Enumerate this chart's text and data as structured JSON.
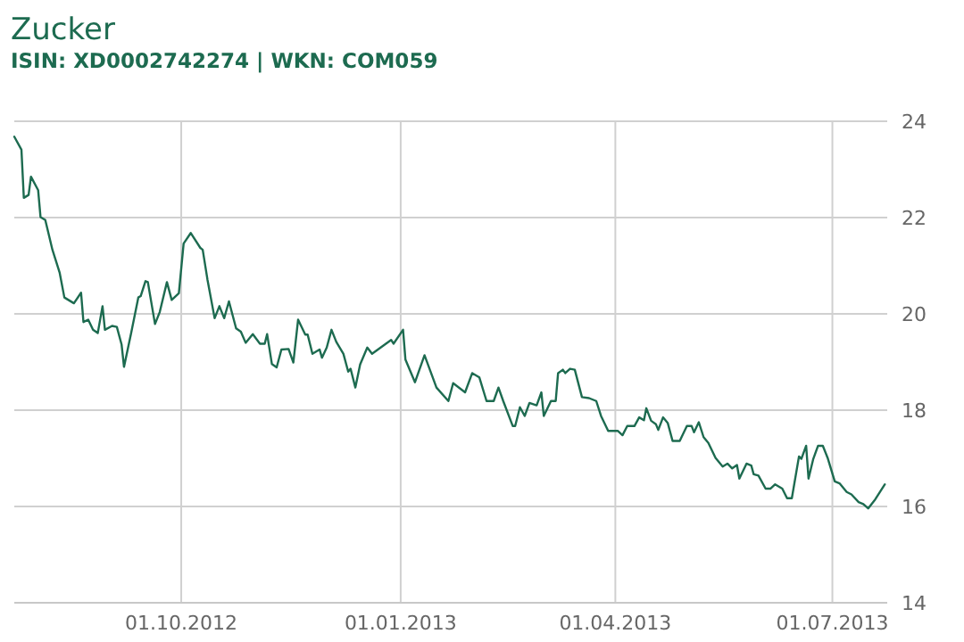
{
  "chart_data": {
    "type": "line",
    "title": "Zucker",
    "subtitle": "ISIN: XD0002742274 | WKN: COM059",
    "x": [
      "2012-07-23",
      "2012-07-26",
      "2012-07-27",
      "2012-07-29",
      "2012-07-30",
      "2012-08-02",
      "2012-08-03",
      "2012-08-05",
      "2012-08-08",
      "2012-08-11",
      "2012-08-13",
      "2012-08-17",
      "2012-08-20",
      "2012-08-21",
      "2012-08-23",
      "2012-08-25",
      "2012-08-27",
      "2012-08-29",
      "2012-08-30",
      "2012-09-02",
      "2012-09-04",
      "2012-09-06",
      "2012-09-07",
      "2012-09-10",
      "2012-09-13",
      "2012-09-14",
      "2012-09-16",
      "2012-09-17",
      "2012-09-20",
      "2012-09-22",
      "2012-09-25",
      "2012-09-27",
      "2012-09-30",
      "2012-10-02",
      "2012-10-05",
      "2012-10-09",
      "2012-10-10",
      "2012-10-12",
      "2012-10-15",
      "2012-10-17",
      "2012-10-19",
      "2012-10-21",
      "2012-10-24",
      "2012-10-26",
      "2012-10-28",
      "2012-10-31",
      "2012-11-03",
      "2012-11-05",
      "2012-11-06",
      "2012-11-08",
      "2012-11-10",
      "2012-11-12",
      "2012-11-15",
      "2012-11-17",
      "2012-11-19",
      "2012-11-22",
      "2012-11-23",
      "2012-11-25",
      "2012-11-28",
      "2012-11-29",
      "2012-12-01",
      "2012-12-03",
      "2012-12-05",
      "2012-12-08",
      "2012-12-10",
      "2012-12-11",
      "2012-12-13",
      "2012-12-15",
      "2012-12-18",
      "2012-12-20",
      "2012-12-28",
      "2012-12-29",
      "2013-01-02",
      "2013-01-03",
      "2013-01-07",
      "2013-01-11",
      "2013-01-16",
      "2013-01-21",
      "2013-01-23",
      "2013-01-28",
      "2013-01-31",
      "2013-02-03",
      "2013-02-06",
      "2013-02-09",
      "2013-02-11",
      "2013-02-13",
      "2013-02-17",
      "2013-02-18",
      "2013-02-20",
      "2013-02-22",
      "2013-02-24",
      "2013-02-27",
      "2013-03-01",
      "2013-03-02",
      "2013-03-05",
      "2013-03-07",
      "2013-03-08",
      "2013-03-10",
      "2013-03-11",
      "2013-03-13",
      "2013-03-15",
      "2013-03-18",
      "2013-03-21",
      "2013-03-24",
      "2013-03-26",
      "2013-03-29",
      "2013-04-02",
      "2013-04-04",
      "2013-04-06",
      "2013-04-09",
      "2013-04-11",
      "2013-04-13",
      "2013-04-14",
      "2013-04-16",
      "2013-04-18",
      "2013-04-19",
      "2013-04-21",
      "2013-04-23",
      "2013-04-25",
      "2013-04-28",
      "2013-05-01",
      "2013-05-03",
      "2013-05-04",
      "2013-05-06",
      "2013-05-08",
      "2013-05-10",
      "2013-05-13",
      "2013-05-15",
      "2013-05-16",
      "2013-05-18",
      "2013-05-20",
      "2013-05-22",
      "2013-05-23",
      "2013-05-26",
      "2013-05-28",
      "2013-05-29",
      "2013-05-31",
      "2013-06-03",
      "2013-06-05",
      "2013-06-07",
      "2013-06-10",
      "2013-06-12",
      "2013-06-14",
      "2013-06-17",
      "2013-06-18",
      "2013-06-20",
      "2013-06-21",
      "2013-06-23",
      "2013-06-25",
      "2013-06-27",
      "2013-06-29",
      "2013-07-02",
      "2013-07-04",
      "2013-07-07",
      "2013-07-09",
      "2013-07-12",
      "2013-07-14",
      "2013-07-16",
      "2013-07-19",
      "2013-07-23"
    ],
    "series": [
      {
        "color": "#1d6b50",
        "values": [
          23.68,
          23.41,
          22.41,
          22.47,
          22.85,
          22.57,
          22.01,
          21.95,
          21.33,
          20.86,
          20.34,
          20.22,
          20.44,
          19.83,
          19.88,
          19.67,
          19.6,
          20.16,
          19.67,
          19.75,
          19.73,
          19.36,
          18.9,
          19.6,
          20.34,
          20.37,
          20.68,
          20.66,
          19.79,
          20.04,
          20.66,
          20.29,
          20.43,
          21.46,
          21.68,
          21.37,
          21.33,
          20.71,
          19.91,
          20.16,
          19.91,
          20.26,
          19.7,
          19.63,
          19.4,
          19.58,
          19.38,
          19.38,
          19.58,
          18.96,
          18.89,
          19.26,
          19.27,
          18.99,
          19.88,
          19.57,
          19.57,
          19.17,
          19.26,
          19.09,
          19.3,
          19.67,
          19.42,
          19.17,
          18.8,
          18.86,
          18.47,
          18.95,
          19.3,
          19.17,
          19.46,
          19.38,
          19.67,
          19.05,
          18.58,
          19.14,
          18.47,
          18.19,
          18.56,
          18.37,
          18.77,
          18.68,
          18.19,
          18.19,
          18.47,
          18.19,
          17.67,
          17.67,
          18.06,
          17.88,
          18.15,
          18.1,
          18.37,
          17.88,
          18.19,
          18.19,
          18.77,
          18.84,
          18.77,
          18.86,
          18.84,
          18.27,
          18.25,
          18.19,
          17.88,
          17.57,
          17.57,
          17.48,
          17.67,
          17.67,
          17.85,
          17.79,
          18.04,
          17.78,
          17.71,
          17.59,
          17.85,
          17.73,
          17.36,
          17.36,
          17.67,
          17.67,
          17.54,
          17.75,
          17.44,
          17.32,
          17.01,
          16.89,
          16.83,
          16.89,
          16.79,
          16.86,
          16.58,
          16.89,
          16.85,
          16.67,
          16.64,
          16.37,
          16.37,
          16.46,
          16.37,
          16.17,
          16.17,
          17.04,
          16.99,
          17.26,
          16.58,
          16.99,
          17.26,
          17.26,
          17.01,
          16.52,
          16.48,
          16.3,
          16.25,
          16.09,
          16.05,
          15.96,
          16.15,
          16.46
        ]
      }
    ],
    "xlim": [
      "2012-07-23",
      "2013-07-24"
    ],
    "xticks": [
      {
        "value": "2012-10-01",
        "label": "01.10.2012"
      },
      {
        "value": "2013-01-01",
        "label": "01.01.2013"
      },
      {
        "value": "2013-04-01",
        "label": "01.04.2013"
      },
      {
        "value": "2013-07-01",
        "label": "01.07.2013"
      }
    ],
    "ylim": [
      14,
      24
    ],
    "yticks": [
      14,
      16,
      18,
      20,
      22,
      24
    ],
    "grid": true,
    "line_style": "solid"
  }
}
